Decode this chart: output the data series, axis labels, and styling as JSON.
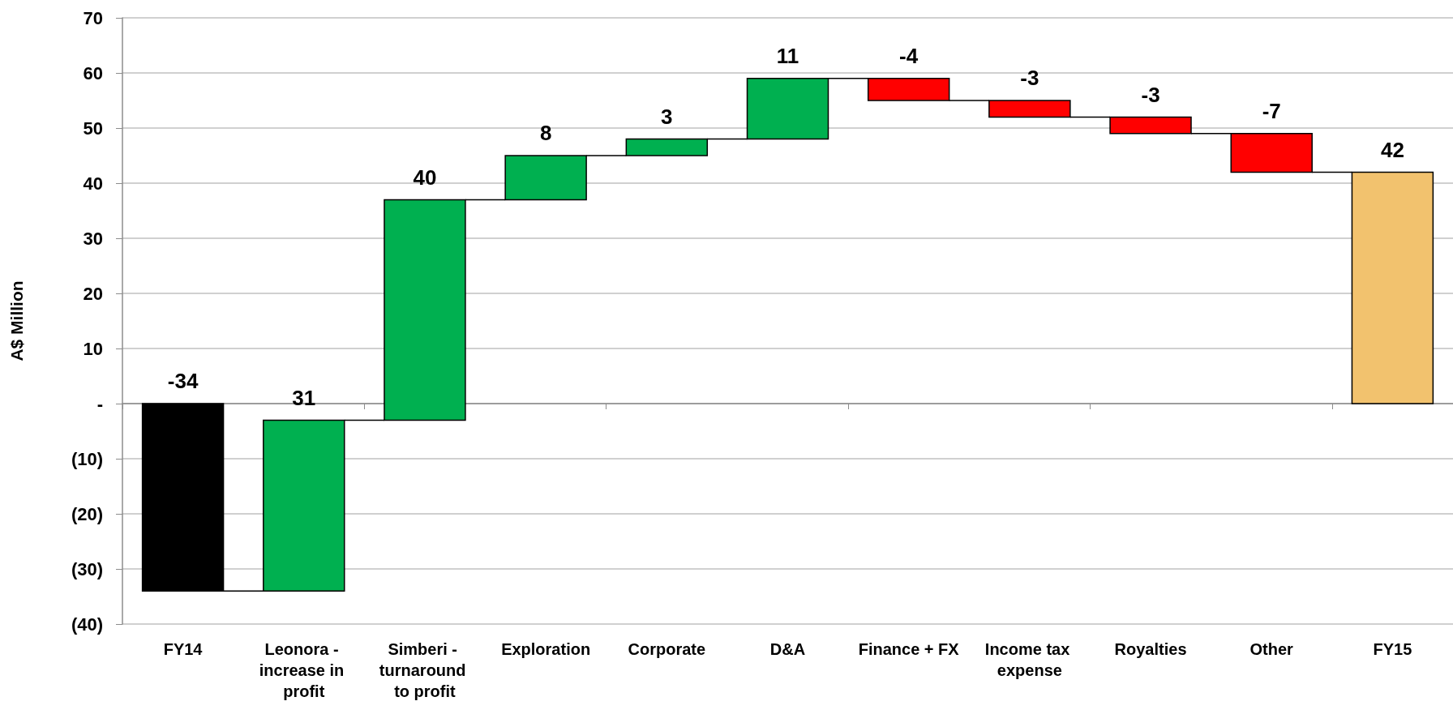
{
  "chart_data": {
    "type": "bar",
    "ylabel": "A$ Million",
    "categories": [
      "FY14",
      "Leonora - increase in profit",
      "Simberi - turnaround to profit",
      "Exploration",
      "Corporate",
      "D&A",
      "Finance + FX",
      "Income tax expense",
      "Royalties",
      "Other",
      "FY15"
    ],
    "values": [
      -34,
      31,
      40,
      8,
      3,
      11,
      -4,
      -3,
      -3,
      -7,
      42
    ],
    "base": [
      0,
      -34,
      -3,
      37,
      45,
      48,
      59,
      55,
      52,
      49,
      0
    ],
    "colors": [
      "#000000",
      "#00b050",
      "#00b050",
      "#00b050",
      "#00b050",
      "#00b050",
      "#ff0000",
      "#ff0000",
      "#ff0000",
      "#ff0000",
      "#f2c26e"
    ],
    "ylim": [
      -40,
      70
    ],
    "yticks": [
      {
        "value": -40,
        "label": "(40)"
      },
      {
        "value": -30,
        "label": "(30)"
      },
      {
        "value": -20,
        "label": "(20)"
      },
      {
        "value": -10,
        "label": "(10)"
      },
      {
        "value": 0,
        "label": "-"
      },
      10,
      20,
      30,
      40,
      50,
      60,
      70
    ],
    "grid": "y",
    "data_labels": true
  }
}
